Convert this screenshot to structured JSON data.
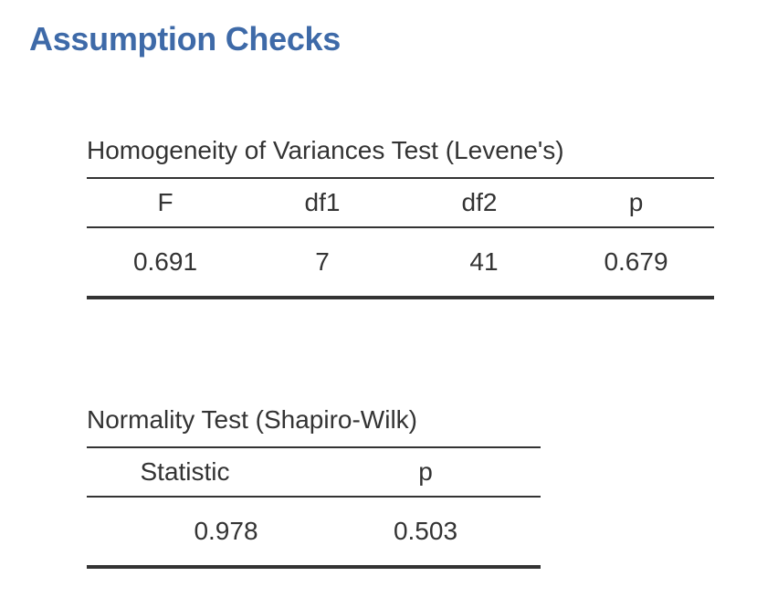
{
  "page": {
    "title": "Assumption Checks"
  },
  "colors": {
    "title": "#3e6aa8",
    "text": "#333333",
    "rule": "#333333"
  },
  "levene": {
    "title": "Homogeneity of Variances Test (Levene's)",
    "columns": [
      "F",
      "df1",
      "df2",
      "p"
    ],
    "rows": [
      [
        "0.691",
        "7",
        "41",
        "0.679"
      ]
    ]
  },
  "shapiro": {
    "title": "Normality Test (Shapiro-Wilk)",
    "columns": [
      "Statistic",
      "p"
    ],
    "rows": [
      [
        "0.978",
        "0.503"
      ]
    ]
  }
}
